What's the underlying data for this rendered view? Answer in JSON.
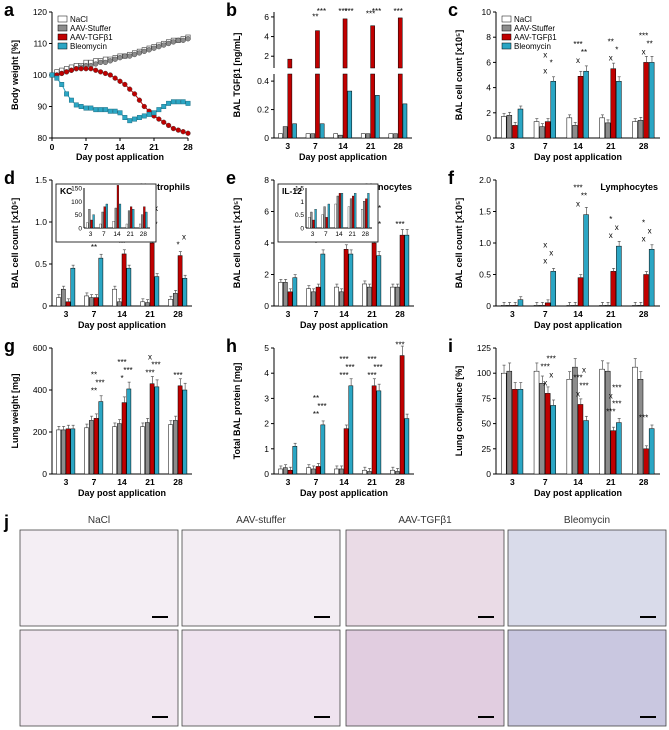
{
  "colors": {
    "nacl": "#ffffff",
    "stuffer": "#8c8c8c",
    "tgf": "#c00000",
    "bleo": "#2ba6c4",
    "axis": "#000000"
  },
  "groups": [
    "NaCl",
    "AAV-Stuffer",
    "AAV-TGFβ1",
    "Bleomycin"
  ],
  "xlabel": "Day post application",
  "chart_data": [
    {
      "panel": "a",
      "type": "line",
      "xlabel": "Day post application",
      "ylabel": "Body weight [%]",
      "xlim": [
        0,
        28
      ],
      "ylim": [
        80,
        120
      ],
      "xticks": [
        0,
        7,
        14,
        21,
        28
      ],
      "yticks": [
        80,
        90,
        100,
        110,
        120
      ],
      "legend": [
        "NaCl",
        "AAV-Stuffer",
        "AAV-TGFβ1",
        "Bleomycin"
      ],
      "series": [
        {
          "name": "NaCl",
          "x": [
            0,
            1,
            2,
            3,
            4,
            5,
            6,
            7,
            8,
            9,
            10,
            11,
            12,
            13,
            14,
            15,
            16,
            17,
            18,
            19,
            20,
            21,
            22,
            23,
            24,
            25,
            26,
            27,
            28
          ],
          "y": [
            100,
            101,
            101.5,
            102,
            102.5,
            103,
            103,
            104,
            104,
            104.5,
            104.5,
            105,
            105,
            105.5,
            106,
            106,
            106.5,
            107,
            107.5,
            108,
            108.5,
            109,
            109.5,
            110,
            110.5,
            111,
            111,
            111.5,
            112
          ]
        },
        {
          "name": "AAV-Stuffer",
          "x": [
            0,
            1,
            2,
            3,
            4,
            5,
            6,
            7,
            8,
            9,
            10,
            11,
            12,
            13,
            14,
            15,
            16,
            17,
            18,
            19,
            20,
            21,
            22,
            23,
            24,
            25,
            26,
            27,
            28
          ],
          "y": [
            100,
            100,
            100.5,
            101,
            101.5,
            102,
            102.5,
            103,
            103,
            103.5,
            104,
            104,
            104.5,
            105,
            105.5,
            106,
            106,
            106.5,
            107,
            107.5,
            108,
            108.5,
            109,
            109.5,
            110,
            110.5,
            111,
            111,
            111.5
          ]
        },
        {
          "name": "AAV-TGFβ1",
          "x": [
            0,
            1,
            2,
            3,
            4,
            5,
            6,
            7,
            8,
            9,
            10,
            11,
            12,
            13,
            14,
            15,
            16,
            17,
            18,
            19,
            20,
            21,
            22,
            23,
            24,
            25,
            26,
            27,
            28
          ],
          "y": [
            100,
            100,
            100.5,
            101,
            101.5,
            102,
            102,
            102,
            102,
            101.5,
            101,
            100.5,
            100,
            99,
            98,
            97,
            95.5,
            94,
            92,
            90,
            88.5,
            87,
            86,
            85,
            84,
            83,
            82.5,
            82,
            81.5
          ]
        },
        {
          "name": "Bleomycin",
          "x": [
            0,
            1,
            2,
            3,
            4,
            5,
            6,
            7,
            8,
            9,
            10,
            11,
            12,
            13,
            14,
            15,
            16,
            17,
            18,
            19,
            20,
            21,
            22,
            23,
            24,
            25,
            26,
            27,
            28
          ],
          "y": [
            100,
            99,
            97,
            94,
            92,
            90.5,
            90,
            89.5,
            89.5,
            89,
            89,
            89,
            88.5,
            88.5,
            88,
            86.5,
            85.5,
            86,
            86.5,
            87,
            87.5,
            88,
            89,
            90,
            91,
            91.5,
            91.5,
            91.5,
            91
          ]
        }
      ]
    },
    {
      "panel": "b",
      "type": "bar",
      "broken_axis": true,
      "title": "",
      "xlabel": "Day post application",
      "ylabel": "BAL TGFβ1 [ng/mL]",
      "categories": [
        "3",
        "7",
        "14",
        "21",
        "28"
      ],
      "yticks_lower": [
        0,
        0.2,
        0.4
      ],
      "yticks_upper": [
        2,
        4,
        6
      ],
      "series": [
        {
          "name": "NaCl",
          "values": [
            0.03,
            0.03,
            0.03,
            0.03,
            0.03
          ]
        },
        {
          "name": "AAV-Stuffer",
          "values": [
            0.08,
            0.03,
            0.02,
            0.03,
            0.03
          ]
        },
        {
          "name": "AAV-TGFβ1",
          "values": [
            1.7,
            4.6,
            5.8,
            5.1,
            5.9
          ]
        },
        {
          "name": "Bleomycin",
          "values": [
            0.1,
            0.1,
            0.33,
            0.3,
            0.24
          ]
        }
      ],
      "annotations": [
        "**",
        "***",
        "***",
        "***",
        "***",
        "***",
        "***"
      ]
    },
    {
      "panel": "c",
      "type": "bar",
      "xlabel": "Day post application",
      "ylabel": "BAL cell count [x10⁵]",
      "categories": [
        "3",
        "7",
        "14",
        "21",
        "28"
      ],
      "ylim": [
        0,
        10
      ],
      "yticks": [
        0,
        2,
        4,
        6,
        8,
        10
      ],
      "legend": [
        "NaCl",
        "AAV-Stuffer",
        "AAV-TGFβ1",
        "Bleomycin"
      ],
      "series": [
        {
          "name": "NaCl",
          "values": [
            1.7,
            1.3,
            1.6,
            1.6,
            1.3
          ]
        },
        {
          "name": "AAV-Stuffer",
          "values": [
            1.8,
            0.9,
            1.0,
            1.2,
            1.4
          ]
        },
        {
          "name": "AAV-TGFβ1",
          "values": [
            1.0,
            1.3,
            4.9,
            5.5,
            6.0
          ]
        },
        {
          "name": "Bleomycin",
          "values": [
            2.3,
            4.5,
            5.3,
            4.5,
            6.0
          ]
        }
      ],
      "annotations": [
        "x",
        "*",
        "x",
        "x",
        "**",
        "***",
        "x",
        "*",
        "**",
        "x",
        "**",
        "***"
      ]
    },
    {
      "panel": "d",
      "type": "bar",
      "title": "Neutrophils",
      "xlabel": "Day post application",
      "ylabel": "BAL cell count [x10⁵]",
      "categories": [
        "3",
        "7",
        "14",
        "21",
        "28"
      ],
      "ylim": [
        0,
        1.5
      ],
      "yticks": [
        0,
        0.5,
        1.0,
        1.5
      ],
      "series": [
        {
          "name": "NaCl",
          "values": [
            0.1,
            0.12,
            0.2,
            0.05,
            0.08
          ]
        },
        {
          "name": "AAV-Stuffer",
          "values": [
            0.2,
            0.1,
            0.05,
            0.04,
            0.15
          ]
        },
        {
          "name": "AAV-TGFβ1",
          "values": [
            0.05,
            0.1,
            0.62,
            0.75,
            0.6
          ]
        },
        {
          "name": "Bleomycin",
          "values": [
            0.45,
            0.57,
            0.45,
            0.35,
            0.33
          ]
        }
      ],
      "inset": {
        "label": "KC",
        "categories": [
          "3",
          "7",
          "14",
          "21",
          "28"
        ],
        "yticks": [
          0,
          50,
          100,
          150
        ],
        "series": [
          {
            "name": "NaCl",
            "values": [
              20,
              15,
              25,
              15,
              15
            ]
          },
          {
            "name": "AAV-Stuffer",
            "values": [
              70,
              60,
              75,
              65,
              50
            ]
          },
          {
            "name": "AAV-TGFβ1",
            "values": [
              30,
              80,
              160,
              80,
              80
            ]
          },
          {
            "name": "Bleomycin",
            "values": [
              50,
              90,
              90,
              70,
              60
            ]
          }
        ]
      },
      "annotations": [
        "**",
        "*",
        "x",
        "x",
        "*",
        "**",
        "x",
        "x",
        "**",
        "x",
        "x",
        "*",
        "***",
        "x",
        "x",
        "*",
        "x"
      ]
    },
    {
      "panel": "e",
      "type": "bar",
      "title": "Monocytes",
      "xlabel": "Day post application",
      "ylabel": "BAL cell count [x10⁵]",
      "categories": [
        "3",
        "7",
        "14",
        "21",
        "28"
      ],
      "ylim": [
        0,
        8
      ],
      "yticks": [
        0,
        2,
        4,
        6,
        8
      ],
      "series": [
        {
          "name": "NaCl",
          "values": [
            1.5,
            1.1,
            1.2,
            1.4,
            1.2
          ]
        },
        {
          "name": "AAV-Stuffer",
          "values": [
            1.5,
            0.9,
            0.9,
            1.2,
            1.2
          ]
        },
        {
          "name": "AAV-TGFβ1",
          "values": [
            0.9,
            1.2,
            3.6,
            4.0,
            4.5
          ]
        },
        {
          "name": "Bleomycin",
          "values": [
            1.8,
            3.3,
            3.3,
            3.2,
            4.5
          ]
        }
      ],
      "inset": {
        "label": "IL-12",
        "categories": [
          "3",
          "7",
          "14",
          "21",
          "28"
        ],
        "yticks": [
          0,
          0.5,
          1,
          1.5
        ],
        "series": [
          {
            "name": "NaCl",
            "values": [
              0.4,
              0.5,
              0.9,
              0.8,
              0.7
            ]
          },
          {
            "name": "AAV-Stuffer",
            "values": [
              0.6,
              0.8,
              1.2,
              1.1,
              1.0
            ]
          },
          {
            "name": "AAV-TGFβ1",
            "values": [
              0.3,
              0.4,
              1.3,
              1.2,
              1.1
            ]
          },
          {
            "name": "Bleomycin",
            "values": [
              0.7,
              0.9,
              1.3,
              1.3,
              1.3
            ]
          }
        ]
      },
      "annotations": [
        "*",
        "x",
        "*",
        "x",
        "*",
        "x",
        "x",
        "*",
        "x",
        "**",
        "x",
        "**",
        "***"
      ]
    },
    {
      "panel": "f",
      "type": "bar",
      "title": "Lymphocytes",
      "xlabel": "Day post application",
      "ylabel": "BAL cell count [x10⁵]",
      "categories": [
        "3",
        "7",
        "14",
        "21",
        "28"
      ],
      "ylim": [
        0,
        2.0
      ],
      "yticks": [
        0,
        0.5,
        1.0,
        1.5,
        2.0
      ],
      "series": [
        {
          "name": "NaCl",
          "values": [
            0.01,
            0.01,
            0.01,
            0.01,
            0.01
          ]
        },
        {
          "name": "AAV-Stuffer",
          "values": [
            0.01,
            0.01,
            0.01,
            0.01,
            0.01
          ]
        },
        {
          "name": "AAV-TGFβ1",
          "values": [
            0.01,
            0.05,
            0.45,
            0.55,
            0.5
          ]
        },
        {
          "name": "Bleomycin",
          "values": [
            0.1,
            0.55,
            1.45,
            0.95,
            0.9
          ]
        }
      ],
      "annotations": [
        "x",
        "x",
        "x",
        "x",
        "**",
        "***",
        "x",
        "x",
        "*",
        "x",
        "x",
        "*"
      ]
    },
    {
      "panel": "g",
      "type": "bar",
      "xlabel": "Day post application",
      "ylabel": "Lung weight [mg]",
      "categories": [
        "3",
        "7",
        "14",
        "21",
        "28"
      ],
      "ylim": [
        0,
        600
      ],
      "yticks": [
        0,
        200,
        400,
        600
      ],
      "series": [
        {
          "name": "NaCl",
          "values": [
            210,
            220,
            225,
            225,
            235
          ]
        },
        {
          "name": "AAV-Stuffer",
          "values": [
            210,
            255,
            240,
            245,
            255
          ]
        },
        {
          "name": "AAV-TGFβ1",
          "values": [
            215,
            265,
            340,
            430,
            420
          ]
        },
        {
          "name": "Bleomycin",
          "values": [
            215,
            345,
            405,
            415,
            400
          ]
        }
      ],
      "annotations": [
        "**",
        "***",
        "**",
        "*",
        "***",
        "***",
        "***",
        "***",
        "x",
        "***"
      ]
    },
    {
      "panel": "h",
      "type": "bar",
      "xlabel": "Day post application",
      "ylabel": "Total BAL protein [mg]",
      "categories": [
        "3",
        "7",
        "14",
        "21",
        "28"
      ],
      "ylim": [
        0,
        5
      ],
      "yticks": [
        0,
        1,
        2,
        3,
        4,
        5
      ],
      "series": [
        {
          "name": "NaCl",
          "values": [
            0.2,
            0.25,
            0.2,
            0.15,
            0.15
          ]
        },
        {
          "name": "AAV-Stuffer",
          "values": [
            0.25,
            0.2,
            0.2,
            0.1,
            0.1
          ]
        },
        {
          "name": "AAV-TGFβ1",
          "values": [
            0.15,
            0.3,
            1.8,
            3.5,
            4.7
          ]
        },
        {
          "name": "Bleomycin",
          "values": [
            1.1,
            1.95,
            3.5,
            3.3,
            2.2
          ]
        }
      ],
      "annotations": [
        "**",
        "***",
        "**",
        "***",
        "***",
        "***",
        "***",
        "***",
        "***",
        "***"
      ]
    },
    {
      "panel": "i",
      "type": "bar",
      "xlabel": "Day post application",
      "ylabel": "Lung compliance [%]",
      "categories": [
        "3",
        "7",
        "14",
        "21",
        "28"
      ],
      "ylim": [
        0,
        125
      ],
      "yticks": [
        0,
        25,
        50,
        75,
        100,
        125
      ],
      "series": [
        {
          "name": "NaCl",
          "values": [
            100,
            102,
            94,
            104,
            106
          ]
        },
        {
          "name": "AAV-Stuffer",
          "values": [
            102,
            90,
            106,
            102,
            94
          ]
        },
        {
          "name": "AAV-TGFβ1",
          "values": [
            84,
            80,
            69,
            43,
            25
          ]
        },
        {
          "name": "Bleomycin",
          "values": [
            84,
            68,
            53,
            51,
            45
          ]
        }
      ],
      "annotations": [
        "x",
        "x",
        "***",
        "***",
        "x",
        "***",
        "***",
        "x",
        "***",
        "***",
        "x",
        "***",
        "***"
      ]
    }
  ],
  "histology": {
    "panel": "j",
    "titles": [
      "NaCl",
      "AAV-stuffer",
      "AAV-TGFβ1",
      "Bleomycin"
    ]
  }
}
